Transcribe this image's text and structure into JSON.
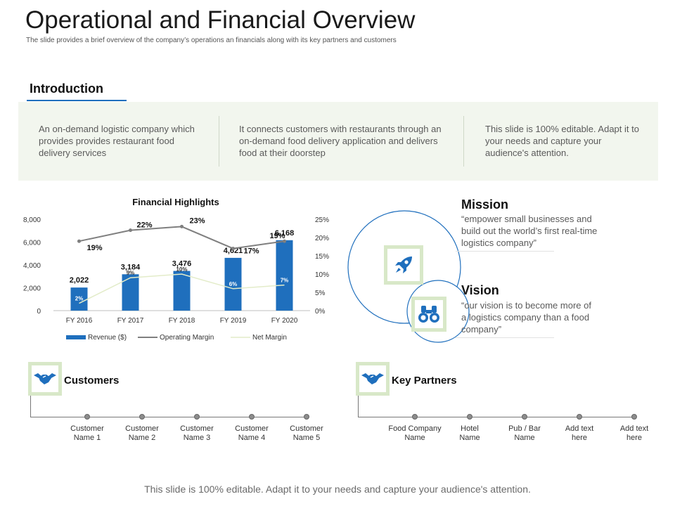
{
  "header": {
    "title": "Operational and Financial Overview",
    "subtitle": "The slide provides a brief overview of the company’s operations an financials along with its key partners and customers"
  },
  "introduction": {
    "heading": "Introduction",
    "columns": [
      "An on-demand logistic company which provides provides restaurant food delivery services",
      "It connects customers with restaurants through an on-demand food delivery application and delivers food at their doorstep",
      "This slide is 100% editable. Adapt it to your needs and capture your audience's attention."
    ]
  },
  "chart_data": {
    "type": "bar",
    "title": "Financial Highlights",
    "categories": [
      "FY 2016",
      "FY 2017",
      "FY 2018",
      "FY 2019",
      "FY 2020"
    ],
    "series": [
      {
        "name": "Revenue ($)",
        "kind": "bar",
        "axis": "left",
        "values": [
          2022,
          3184,
          3476,
          4621,
          6168
        ],
        "labels": [
          "2,022",
          "3,184",
          "3,476",
          "4,621",
          "6,168"
        ]
      },
      {
        "name": "Operating Margin",
        "kind": "line",
        "axis": "right",
        "values": [
          19,
          22,
          23,
          17,
          19
        ],
        "labels": [
          "19%",
          "22%",
          "23%",
          "17%",
          "19%"
        ]
      },
      {
        "name": "Net Margin",
        "kind": "line",
        "axis": "right",
        "values": [
          2,
          9,
          10,
          6,
          7
        ],
        "labels": [
          "2%",
          "9%",
          "10%",
          "6%",
          "7%"
        ]
      }
    ],
    "y_left": {
      "ticks": [
        "0",
        "2,000",
        "4,000",
        "6,000",
        "8,000"
      ],
      "range": [
        0,
        8000
      ]
    },
    "y_right": {
      "ticks": [
        "0%",
        "5%",
        "10%",
        "15%",
        "20%",
        "25%"
      ],
      "range": [
        0,
        25
      ]
    },
    "colors": {
      "revenue": "#1f6fbd",
      "operating": "#7f7f7f",
      "net": "#e3ecc9"
    }
  },
  "mission": {
    "title": "Mission",
    "text": "“empower small businesses and build out the world’s first real-time logistics company”"
  },
  "vision": {
    "title": "Vision",
    "text": "“our vision is to become more of a logistics company than a food company”"
  },
  "customers": {
    "title": "Customers",
    "items": [
      [
        "Customer",
        "Name 1"
      ],
      [
        "Customer",
        "Name 2"
      ],
      [
        "Customer",
        "Name 3"
      ],
      [
        "Customer",
        "Name 4"
      ],
      [
        "Customer",
        "Name 5"
      ]
    ]
  },
  "partners": {
    "title": "Key Partners",
    "items": [
      [
        "Food Company",
        "Name"
      ],
      [
        "Hotel",
        "Name"
      ],
      [
        "Pub / Bar",
        "Name"
      ],
      [
        "Add text",
        "here"
      ],
      [
        "Add text",
        "here"
      ]
    ]
  },
  "icons": {
    "mission": "rocket-icon",
    "vision": "binoculars-icon",
    "customers": "handshake-icon",
    "partners": "handshake-icon"
  },
  "footer": "This slide is 100% editable. Adapt it to your needs and capture your audience's attention."
}
